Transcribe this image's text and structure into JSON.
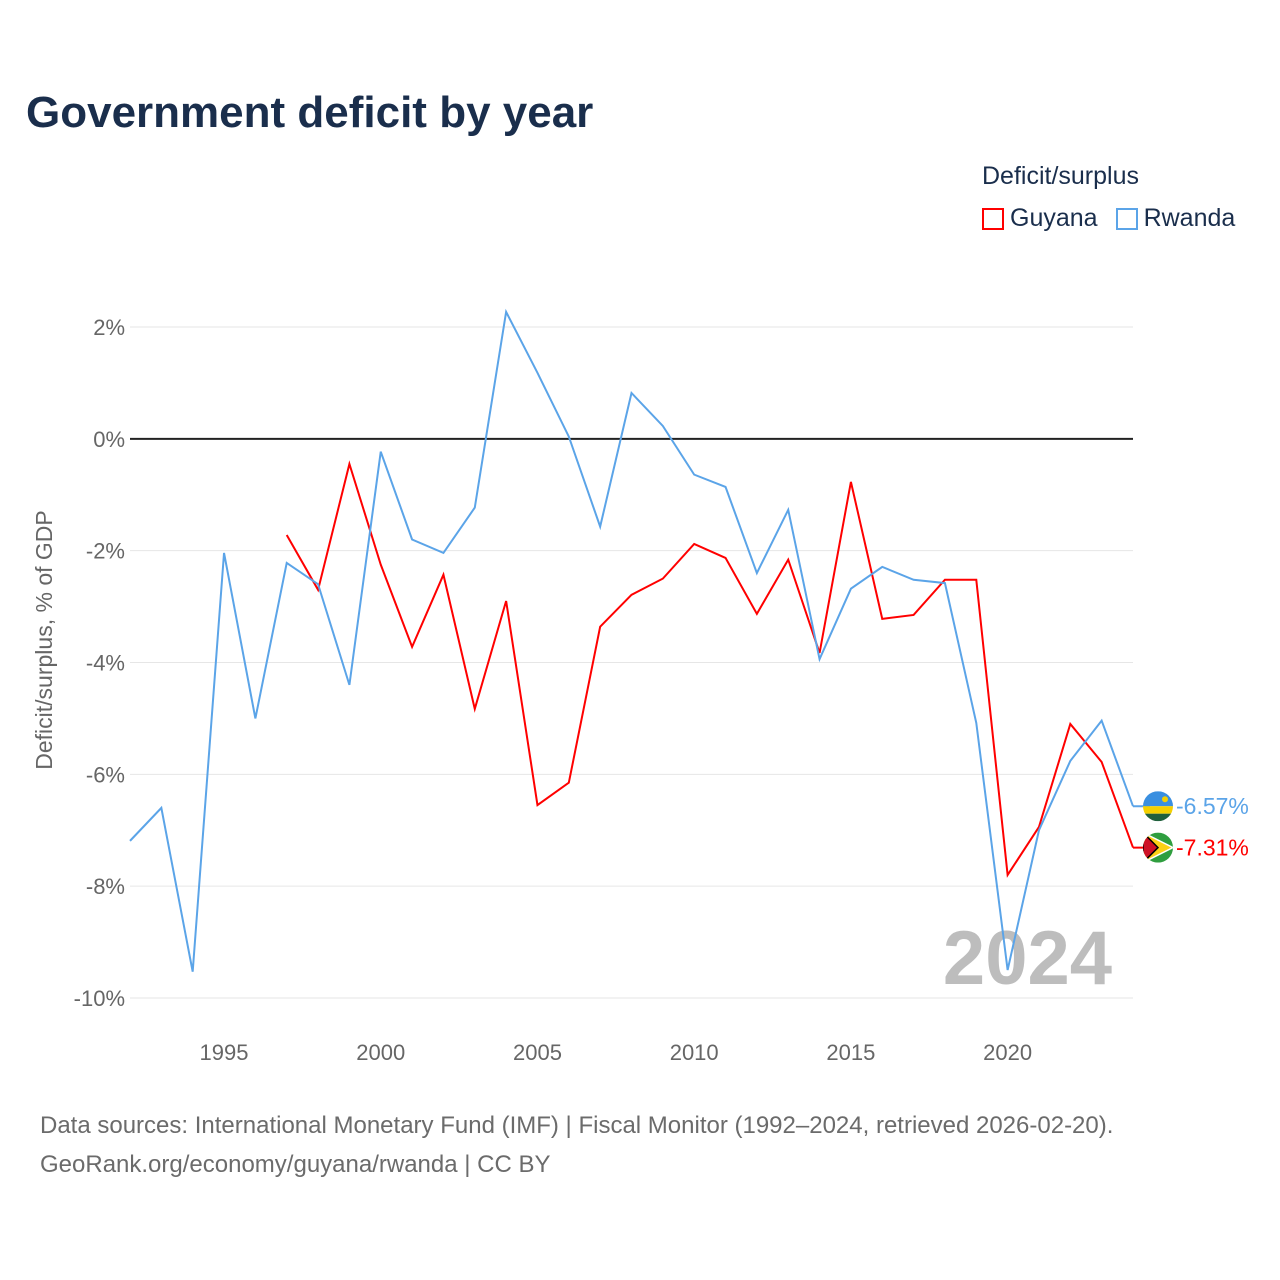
{
  "chart_data": {
    "type": "line",
    "title": "Government deficit by year",
    "ylabel": "Deficit/surplus, % of GDP",
    "xlabel": "",
    "ylim": [
      -10,
      2
    ],
    "xlim": [
      1992,
      2024
    ],
    "yticks": [
      2,
      0,
      -2,
      -4,
      -6,
      -8,
      -10
    ],
    "ytick_labels": [
      "2%",
      "0%",
      "-2%",
      "-4%",
      "-6%",
      "-8%",
      "-10%"
    ],
    "xticks": [
      1995,
      2000,
      2005,
      2010,
      2015,
      2020
    ],
    "xtick_labels": [
      "1995",
      "2000",
      "2005",
      "2010",
      "2015",
      "2020"
    ],
    "grid": true,
    "legend_title": "Deficit/surplus",
    "legend_placement": "top-right",
    "watermark_year": "2024",
    "series": [
      {
        "name": "Guyana",
        "color": "#ff0000",
        "end_label": "-7.31%",
        "x": [
          1997,
          1998,
          1999,
          2000,
          2001,
          2002,
          2003,
          2004,
          2005,
          2006,
          2007,
          2008,
          2009,
          2010,
          2011,
          2012,
          2013,
          2014,
          2015,
          2016,
          2017,
          2018,
          2019,
          2020,
          2021,
          2022,
          2023,
          2024
        ],
        "values": [
          -1.72,
          -2.7,
          -0.45,
          -2.25,
          -3.72,
          -2.43,
          -4.83,
          -2.9,
          -6.55,
          -6.15,
          -3.36,
          -2.79,
          -2.5,
          -1.88,
          -2.13,
          -3.13,
          -2.16,
          -3.83,
          -0.77,
          -3.22,
          -3.15,
          -2.52,
          -2.52,
          -7.8,
          -6.94,
          -5.1,
          -5.78,
          -7.31
        ]
      },
      {
        "name": "Rwanda",
        "color": "#5ba4e8",
        "end_label": "-6.57%",
        "x": [
          1992,
          1993,
          1994,
          1995,
          1996,
          1997,
          1998,
          1999,
          2000,
          2001,
          2002,
          2003,
          2004,
          2005,
          2006,
          2007,
          2008,
          2009,
          2010,
          2011,
          2012,
          2013,
          2014,
          2015,
          2016,
          2017,
          2018,
          2019,
          2020,
          2021,
          2022,
          2023,
          2024
        ],
        "values": [
          -7.19,
          -6.6,
          -9.53,
          -2.04,
          -5.0,
          -2.22,
          -2.6,
          -4.4,
          -0.23,
          -1.8,
          -2.04,
          -1.23,
          2.27,
          1.18,
          0.04,
          -1.57,
          0.82,
          0.23,
          -0.64,
          -0.86,
          -2.4,
          -1.27,
          -3.94,
          -2.68,
          -2.29,
          -2.52,
          -2.58,
          -5.08,
          -9.5,
          -7.0,
          -5.76,
          -5.04,
          -6.57
        ]
      }
    ]
  },
  "footer": {
    "source_line": "Data sources: International Monetary Fund (IMF) | Fiscal Monitor (1992–2024, retrieved 2026-02-20).",
    "link_line": "GeoRank.org/economy/guyana/rwanda | CC BY"
  }
}
